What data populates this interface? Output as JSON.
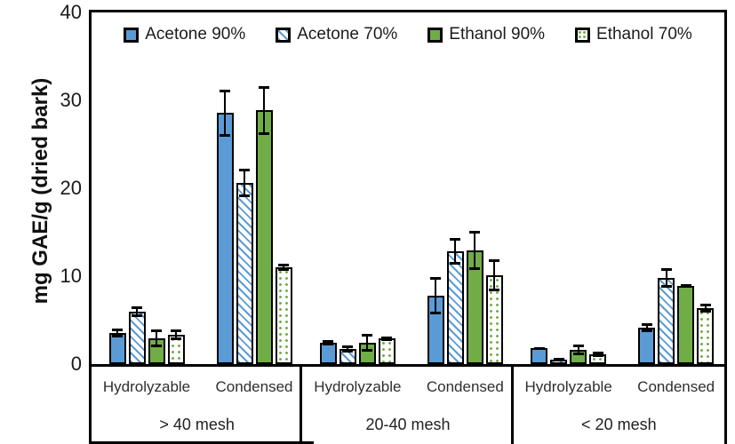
{
  "chart_data": {
    "type": "bar",
    "title": "",
    "ylabel": "mg GAE/g (dried bark)",
    "ylim": [
      0,
      40
    ],
    "yticks": [
      0,
      10,
      20,
      30,
      40
    ],
    "grid": false,
    "legend_position": "top-inside",
    "group_labels": [
      "> 40 mesh",
      "20-40 mesh",
      "< 20 mesh"
    ],
    "category_labels": [
      "Hydrolyzable",
      "Condensed"
    ],
    "series": [
      {
        "name": "Acetone 90%",
        "color": "#5B9BD5",
        "pattern": "solid",
        "values": [
          [
            3.5,
            28.6
          ],
          [
            2.4,
            7.8
          ],
          [
            1.8,
            4.1
          ]
        ],
        "errors": [
          [
            0.5,
            2.7
          ],
          [
            0.3,
            2.1
          ],
          [
            0.15,
            0.5
          ]
        ]
      },
      {
        "name": "Acetone 70%",
        "color": "#5B9BD5",
        "pattern": "diagonal-hatch",
        "values": [
          [
            6.0,
            20.6
          ],
          [
            1.7,
            12.8
          ],
          [
            0.55,
            9.8
          ]
        ],
        "errors": [
          [
            0.6,
            1.6
          ],
          [
            0.4,
            1.5
          ],
          [
            0.1,
            1.1
          ]
        ]
      },
      {
        "name": "Ethanol 90%",
        "color": "#70AD47",
        "pattern": "solid",
        "values": [
          [
            2.9,
            28.9
          ],
          [
            2.4,
            12.9
          ],
          [
            1.6,
            8.9
          ]
        ],
        "errors": [
          [
            1.0,
            2.8
          ],
          [
            1.0,
            2.2
          ],
          [
            0.6,
            0.2
          ]
        ]
      },
      {
        "name": "Ethanol 70%",
        "color": "#70AD47",
        "pattern": "dots",
        "values": [
          [
            3.3,
            11.0
          ],
          [
            2.9,
            10.1
          ],
          [
            1.1,
            6.4
          ]
        ],
        "errors": [
          [
            0.6,
            0.4
          ],
          [
            0.25,
            1.8
          ],
          [
            0.3,
            0.5
          ]
        ]
      }
    ],
    "axis_color": "#000000",
    "background": "#FFFFFF"
  }
}
